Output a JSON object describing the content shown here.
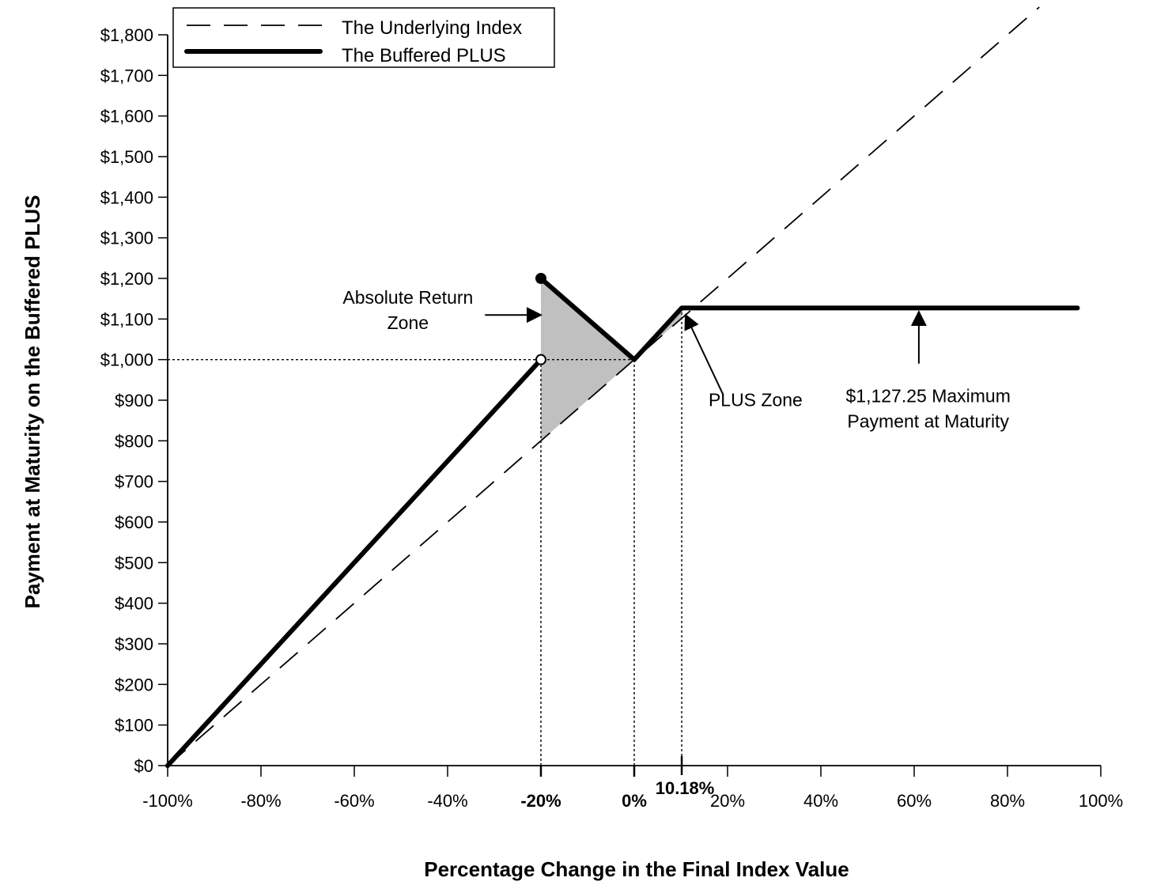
{
  "chart_data": {
    "type": "line",
    "xlabel": "Percentage Change in the Final Index Value",
    "ylabel": "Payment at Maturity on the Buffered PLUS",
    "xlim": [
      -100,
      100
    ],
    "ylim": [
      0,
      1800
    ],
    "x_ticks": [
      {
        "value": -100,
        "label": "-100%"
      },
      {
        "value": -80,
        "label": "-80%"
      },
      {
        "value": -60,
        "label": "-60%"
      },
      {
        "value": -40,
        "label": "-40%"
      },
      {
        "value": -20,
        "label": "-20%",
        "bold": true
      },
      {
        "value": 0,
        "label": "0%",
        "bold": true
      },
      {
        "value": 20,
        "label": "20%"
      },
      {
        "value": 40,
        "label": "40%"
      },
      {
        "value": 60,
        "label": "60%"
      },
      {
        "value": 80,
        "label": "80%"
      },
      {
        "value": 100,
        "label": "100%"
      }
    ],
    "x_special_tick": {
      "value": 10.18,
      "label": "10.18%"
    },
    "y_ticks": [
      {
        "value": 0,
        "label": "$0"
      },
      {
        "value": 100,
        "label": "$100"
      },
      {
        "value": 200,
        "label": "$200"
      },
      {
        "value": 300,
        "label": "$300"
      },
      {
        "value": 400,
        "label": "$400"
      },
      {
        "value": 500,
        "label": "$500"
      },
      {
        "value": 600,
        "label": "$600"
      },
      {
        "value": 700,
        "label": "$700"
      },
      {
        "value": 800,
        "label": "$800"
      },
      {
        "value": 900,
        "label": "$900"
      },
      {
        "value": 1000,
        "label": "$1,000"
      },
      {
        "value": 1100,
        "label": "$1,100"
      },
      {
        "value": 1200,
        "label": "$1,200"
      },
      {
        "value": 1300,
        "label": "$1,300"
      },
      {
        "value": 1400,
        "label": "$1,400"
      },
      {
        "value": 1500,
        "label": "$1,500"
      },
      {
        "value": 1600,
        "label": "$1,600"
      },
      {
        "value": 1700,
        "label": "$1,700"
      },
      {
        "value": 1800,
        "label": "$1,800"
      }
    ],
    "series": [
      {
        "name": "The Underlying Index",
        "style": "dashed",
        "color": "#000000",
        "points": [
          [
            -100,
            0
          ],
          [
            100,
            2000
          ]
        ]
      },
      {
        "name": "The Buffered PLUS",
        "style": "solid-thick",
        "color": "#000000",
        "segments": [
          [
            [
              -100,
              0
            ],
            [
              -20,
              1000
            ]
          ],
          [
            [
              -20,
              1200
            ],
            [
              0,
              1000
            ],
            [
              10.18,
              1127.25
            ],
            [
              95,
              1127.25
            ]
          ]
        ]
      }
    ],
    "markers": [
      {
        "x": -20,
        "y": 1200,
        "fill": "filled"
      },
      {
        "x": -20,
        "y": 1000,
        "fill": "open"
      }
    ],
    "shaded_region": {
      "color": "#c0c0c0",
      "points": [
        [
          -20,
          1200
        ],
        [
          0,
          1000
        ],
        [
          10.18,
          1127.25
        ],
        [
          10.18,
          1101.8
        ],
        [
          -20,
          800
        ]
      ]
    },
    "reference_lines": [
      {
        "type": "horizontal",
        "y": 1000,
        "x_from": -100,
        "x_to": 0
      },
      {
        "type": "vertical",
        "x": -20,
        "y_from": 0,
        "y_to": 1000
      },
      {
        "type": "vertical",
        "x": 0,
        "y_from": 0,
        "y_to": 1000
      },
      {
        "type": "vertical",
        "x": 10.18,
        "y_from": 0,
        "y_to": 1127.25
      }
    ],
    "annotations": [
      {
        "lines": [
          "Absolute Return",
          "Zone"
        ],
        "text_at": [
          -48.5,
          1138
        ],
        "arrow_from": [
          -32,
          1110
        ],
        "arrow_to": [
          -20,
          1110
        ]
      },
      {
        "lines": [
          "PLUS Zone"
        ],
        "text_at": [
          26,
          885
        ],
        "arrow_from": [
          19,
          915
        ],
        "arrow_to": [
          11,
          1110
        ]
      },
      {
        "lines": [
          "$1,127.25 Maximum",
          "Payment at Maturity"
        ],
        "text_at": [
          63,
          895
        ],
        "arrow_from": [
          61,
          990
        ],
        "arrow_to": [
          61,
          1118
        ]
      }
    ],
    "legend": {
      "placement": "top-left",
      "entries": [
        {
          "label": "The Underlying Index",
          "style": "dashed"
        },
        {
          "label": "The Buffered PLUS",
          "style": "solid-thick"
        }
      ]
    },
    "grid": false
  }
}
